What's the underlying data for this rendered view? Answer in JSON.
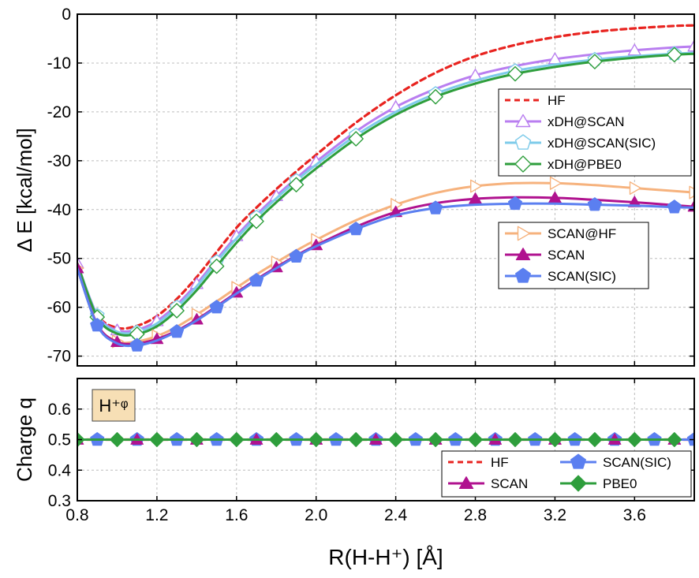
{
  "chart_data": [
    {
      "type": "line",
      "title": "",
      "ylabel": "Δ E [kcal/mol]",
      "xlim": [
        0.8,
        3.9
      ],
      "ylim": [
        -72,
        0
      ],
      "xticks": [
        0.8,
        1.2,
        1.6,
        2.0,
        2.4,
        2.8,
        3.2,
        3.6
      ],
      "yticks": [
        0,
        -10,
        -20,
        -30,
        -40,
        -50,
        -60,
        -70
      ],
      "ytick_labels": [
        "0",
        "-10",
        "-20",
        "-30",
        "-40",
        "-50",
        "-60",
        "-70"
      ],
      "legend_groups": [
        "top-right",
        "middle-right"
      ],
      "series": [
        {
          "name": "HF",
          "color": "#e8231f",
          "style": "dashed",
          "marker": "none",
          "legend_group": 0,
          "x": [
            0.8,
            0.9,
            1.0,
            1.1,
            1.2,
            1.3,
            1.4,
            1.5,
            1.6,
            1.7,
            1.8,
            1.9,
            2.0,
            2.2,
            2.4,
            2.6,
            2.8,
            3.0,
            3.2,
            3.4,
            3.6,
            3.8,
            3.9
          ],
          "y": [
            -52,
            -61.5,
            -64.2,
            -63.8,
            -61.8,
            -58.3,
            -53.8,
            -48.7,
            -43.7,
            -39.6,
            -35.8,
            -32.2,
            -28.8,
            -22.2,
            -16.6,
            -12.0,
            -8.6,
            -6.3,
            -4.7,
            -3.6,
            -2.9,
            -2.4,
            -2.3
          ]
        },
        {
          "name": "xDH@SCAN",
          "color": "#b97ef0",
          "style": "solid",
          "marker": "triangle",
          "marker_fill": "none",
          "legend_group": 0,
          "x": [
            0.8,
            0.9,
            1.0,
            1.1,
            1.2,
            1.3,
            1.4,
            1.5,
            1.6,
            1.7,
            1.8,
            1.9,
            2.0,
            2.2,
            2.4,
            2.6,
            2.8,
            3.0,
            3.2,
            3.4,
            3.6,
            3.8,
            3.9
          ],
          "y": [
            -51,
            -61.5,
            -64.7,
            -64.6,
            -62.8,
            -59.5,
            -55.2,
            -50.2,
            -45.4,
            -41.1,
            -37.2,
            -33.6,
            -30.2,
            -24.0,
            -19.0,
            -15.3,
            -12.5,
            -10.6,
            -9.2,
            -8.2,
            -7.4,
            -6.8,
            -6.6
          ]
        },
        {
          "name": "xDH@SCAN(SIC)",
          "color": "#7ecbea",
          "style": "solid",
          "marker": "pentagon",
          "marker_fill": "none",
          "legend_group": 0,
          "x": [
            0.8,
            0.9,
            1.0,
            1.1,
            1.2,
            1.3,
            1.4,
            1.5,
            1.6,
            1.7,
            1.8,
            1.9,
            2.0,
            2.2,
            2.4,
            2.6,
            2.8,
            3.0,
            3.2,
            3.4,
            3.6,
            3.8,
            3.9
          ],
          "y": [
            -51,
            -61.7,
            -65.0,
            -65.1,
            -63.3,
            -60.0,
            -55.7,
            -50.7,
            -45.9,
            -41.6,
            -37.7,
            -34.1,
            -30.8,
            -24.8,
            -20.0,
            -16.3,
            -13.6,
            -11.6,
            -10.3,
            -9.3,
            -8.6,
            -8.1,
            -7.9
          ]
        },
        {
          "name": "xDH@PBE0",
          "color": "#2e9e3c",
          "style": "solid",
          "marker": "diamond",
          "marker_fill": "none",
          "legend_group": 0,
          "x": [
            0.8,
            0.9,
            1.0,
            1.1,
            1.2,
            1.3,
            1.4,
            1.5,
            1.6,
            1.7,
            1.8,
            1.9,
            2.0,
            2.2,
            2.4,
            2.6,
            2.8,
            3.0,
            3.2,
            3.4,
            3.6,
            3.8,
            3.9
          ],
          "y": [
            -51,
            -62.0,
            -65.4,
            -65.5,
            -63.9,
            -60.7,
            -56.5,
            -51.6,
            -46.8,
            -42.4,
            -38.5,
            -34.9,
            -31.6,
            -25.5,
            -20.6,
            -16.9,
            -14.2,
            -12.2,
            -10.8,
            -9.7,
            -8.9,
            -8.3,
            -8.1
          ]
        },
        {
          "name": "SCAN@HF",
          "color": "#f6b27d",
          "style": "solid",
          "marker": "triangle-right",
          "marker_fill": "none",
          "legend_group": 1,
          "x": [
            0.8,
            0.9,
            1.0,
            1.1,
            1.2,
            1.3,
            1.4,
            1.5,
            1.6,
            1.7,
            1.8,
            1.9,
            2.0,
            2.2,
            2.4,
            2.6,
            2.8,
            3.0,
            3.2,
            3.4,
            3.6,
            3.8,
            3.9
          ],
          "y": [
            -52,
            -63.5,
            -67.0,
            -67.0,
            -65.9,
            -64.0,
            -61.5,
            -58.8,
            -56.0,
            -53.3,
            -50.8,
            -48.4,
            -46.2,
            -42.2,
            -39.0,
            -36.6,
            -35.2,
            -34.6,
            -34.6,
            -35.0,
            -35.6,
            -36.2,
            -36.5
          ]
        },
        {
          "name": "SCAN",
          "color": "#b0128f",
          "style": "solid",
          "marker": "triangle",
          "marker_fill": "solid",
          "legend_group": 1,
          "x": [
            0.8,
            0.9,
            1.0,
            1.1,
            1.2,
            1.3,
            1.4,
            1.5,
            1.6,
            1.7,
            1.8,
            1.9,
            2.0,
            2.2,
            2.4,
            2.6,
            2.8,
            3.0,
            3.2,
            3.4,
            3.6,
            3.8,
            3.9
          ],
          "y": [
            -52,
            -63.5,
            -67.1,
            -67.4,
            -66.5,
            -64.8,
            -62.5,
            -59.8,
            -57.0,
            -54.3,
            -51.8,
            -49.4,
            -47.3,
            -43.5,
            -40.5,
            -38.7,
            -37.8,
            -37.5,
            -37.6,
            -38.0,
            -38.5,
            -39.1,
            -39.4
          ]
        },
        {
          "name": "SCAN(SIC)",
          "color": "#5b7ff0",
          "style": "solid",
          "marker": "pentagon",
          "marker_fill": "solid",
          "legend_group": 1,
          "x": [
            0.8,
            0.9,
            1.0,
            1.1,
            1.2,
            1.3,
            1.4,
            1.5,
            1.6,
            1.7,
            1.8,
            1.9,
            2.0,
            2.2,
            2.4,
            2.6,
            2.8,
            3.0,
            3.2,
            3.4,
            3.6,
            3.8,
            3.9
          ],
          "y": [
            -52,
            -63.7,
            -67.4,
            -67.8,
            -66.8,
            -65.0,
            -62.7,
            -60.0,
            -57.2,
            -54.5,
            -52.0,
            -49.6,
            -47.5,
            -44.0,
            -41.2,
            -39.7,
            -39.0,
            -38.8,
            -38.8,
            -39.0,
            -39.2,
            -39.5,
            -39.6
          ]
        }
      ]
    },
    {
      "type": "line",
      "title": "",
      "xlabel": "R(H-H⁺) [Å]",
      "ylabel": "Charge q",
      "annotation": "H⁺ᵠ",
      "xlim": [
        0.8,
        3.9
      ],
      "ylim": [
        0.3,
        0.7
      ],
      "xticks": [
        0.8,
        1.2,
        1.6,
        2.0,
        2.4,
        2.8,
        3.2,
        3.6
      ],
      "xtick_labels": [
        "0.8",
        "1.2",
        "1.6",
        "2.0",
        "2.4",
        "2.8",
        "3.2",
        "3.6"
      ],
      "yticks": [
        0.3,
        0.4,
        0.5,
        0.6
      ],
      "ytick_labels": [
        "0.3",
        "0.4",
        "0.5",
        "0.6"
      ],
      "legend": "bottom-right",
      "series": [
        {
          "name": "HF",
          "color": "#e8231f",
          "style": "dashed",
          "marker": "none",
          "x": [
            0.8,
            3.9
          ],
          "y": [
            0.5,
            0.5
          ]
        },
        {
          "name": "SCAN(SIC)",
          "color": "#5b7ff0",
          "style": "solid",
          "marker": "pentagon",
          "marker_fill": "solid",
          "x": [
            0.9,
            1.1,
            1.3,
            1.5,
            1.7,
            1.9,
            2.1,
            2.3,
            2.5,
            2.7,
            2.9,
            3.1,
            3.3,
            3.5,
            3.7,
            3.9
          ],
          "y": [
            0.5,
            0.5,
            0.5,
            0.5,
            0.5,
            0.5,
            0.5,
            0.5,
            0.5,
            0.5,
            0.5,
            0.5,
            0.5,
            0.5,
            0.5,
            0.5
          ]
        },
        {
          "name": "SCAN",
          "color": "#b0128f",
          "style": "solid",
          "marker": "triangle",
          "marker_fill": "solid",
          "x": [
            0.8,
            1.1,
            1.4,
            1.7,
            2.0,
            2.3,
            2.6,
            2.9,
            3.2,
            3.5,
            3.8
          ],
          "y": [
            0.5,
            0.5,
            0.5,
            0.5,
            0.5,
            0.5,
            0.5,
            0.5,
            0.5,
            0.5,
            0.5
          ]
        },
        {
          "name": "PBE0",
          "color": "#2e9e3c",
          "style": "solid",
          "marker": "diamond",
          "marker_fill": "solid",
          "x": [
            0.8,
            1.0,
            1.2,
            1.4,
            1.6,
            1.8,
            2.0,
            2.2,
            2.4,
            2.6,
            2.8,
            3.0,
            3.2,
            3.4,
            3.6,
            3.8
          ],
          "y": [
            0.5,
            0.5,
            0.5,
            0.5,
            0.5,
            0.5,
            0.5,
            0.5,
            0.5,
            0.5,
            0.5,
            0.5,
            0.5,
            0.5,
            0.5,
            0.5
          ]
        }
      ]
    }
  ]
}
